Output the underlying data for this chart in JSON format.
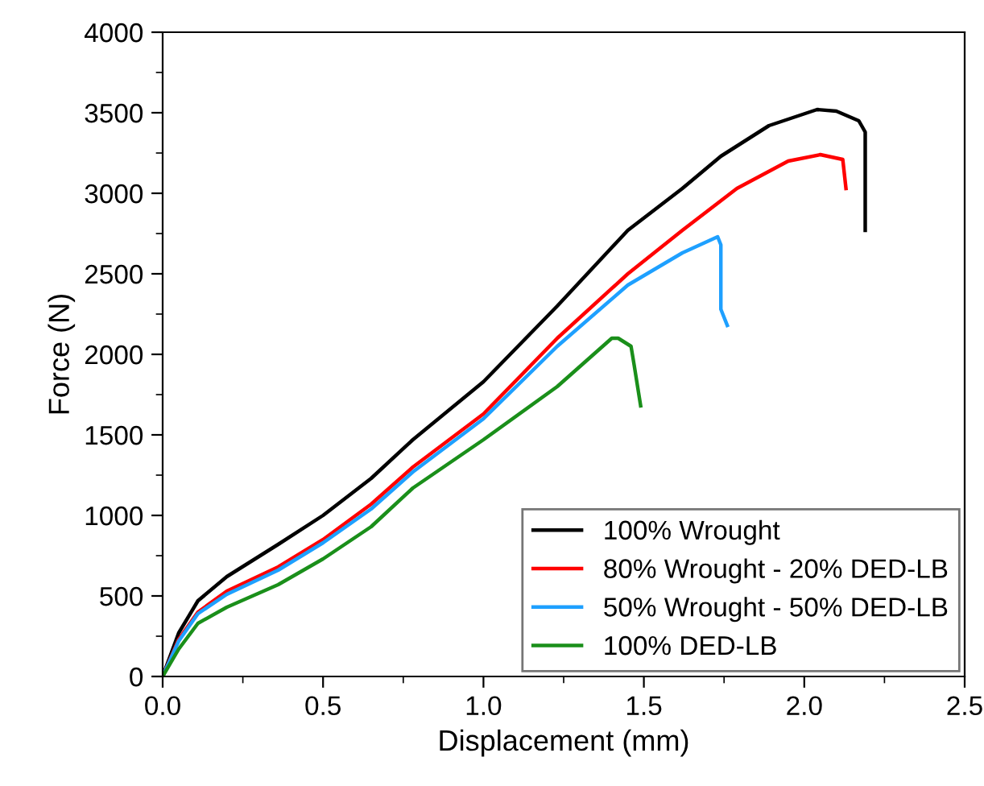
{
  "chart_data": {
    "type": "line",
    "xlabel": "Displacement (mm)",
    "ylabel": "Force (N)",
    "xlim": [
      0,
      2.5
    ],
    "ylim": [
      0,
      4000
    ],
    "xticks": [
      {
        "value": 0,
        "label": "0.0"
      },
      {
        "value": 0.25,
        "label": null
      },
      {
        "value": 0.5,
        "label": "0.5"
      },
      {
        "value": 0.75,
        "label": null
      },
      {
        "value": 1,
        "label": "1.0"
      },
      {
        "value": 1.25,
        "label": null
      },
      {
        "value": 1.5,
        "label": "1.5"
      },
      {
        "value": 1.75,
        "label": null
      },
      {
        "value": 2,
        "label": "2.0"
      },
      {
        "value": 2.25,
        "label": null
      },
      {
        "value": 2.5,
        "label": "2.5"
      }
    ],
    "yticks": [
      0,
      {
        "value": 250,
        "label": null
      },
      500,
      {
        "value": 750,
        "label": null
      },
      1000,
      {
        "value": 1250,
        "label": null
      },
      1500,
      {
        "value": 1750,
        "label": null
      },
      2000,
      {
        "value": 2250,
        "label": null
      },
      2500,
      {
        "value": 2750,
        "label": null
      },
      3000,
      {
        "value": 3250,
        "label": null
      },
      3500,
      {
        "value": 3750,
        "label": null
      },
      4000
    ],
    "grid": false,
    "legend": "bottom right",
    "marker": "none",
    "line_style": "solid",
    "series": [
      {
        "name": "100% Wrought",
        "color": "#000000",
        "x": [
          0,
          0.05,
          0.11,
          0.2,
          0.36,
          0.5,
          0.65,
          0.78,
          1.0,
          1.23,
          1.45,
          1.62,
          1.74,
          1.89,
          2.04,
          2.1,
          2.17,
          2.19,
          2.19
        ],
        "values": [
          0,
          270,
          470,
          620,
          820,
          1000,
          1230,
          1470,
          1830,
          2300,
          2770,
          3030,
          3230,
          3420,
          3520,
          3510,
          3450,
          3380,
          2770
        ]
      },
      {
        "name": "80% Wrought - 20% DED-LB",
        "color": "#ff0000",
        "x": [
          0,
          0.05,
          0.11,
          0.2,
          0.36,
          0.5,
          0.65,
          0.78,
          1.0,
          1.23,
          1.45,
          1.62,
          1.79,
          1.95,
          2.05,
          2.12,
          2.13
        ],
        "values": [
          0,
          230,
          400,
          530,
          680,
          850,
          1070,
          1300,
          1630,
          2100,
          2500,
          2770,
          3030,
          3200,
          3240,
          3210,
          3030
        ]
      },
      {
        "name": "50% Wrought - 50% DED-LB",
        "color": "#1ea0ff",
        "x": [
          0,
          0.05,
          0.11,
          0.2,
          0.36,
          0.5,
          0.65,
          0.78,
          1.0,
          1.23,
          1.45,
          1.62,
          1.73,
          1.74,
          1.74,
          1.76
        ],
        "values": [
          0,
          220,
          390,
          510,
          660,
          830,
          1040,
          1270,
          1600,
          2050,
          2430,
          2630,
          2730,
          2680,
          2280,
          2180
        ]
      },
      {
        "name": "100% DED-LB",
        "color": "#1a8f1a",
        "x": [
          0,
          0.05,
          0.11,
          0.2,
          0.36,
          0.5,
          0.65,
          0.78,
          1.0,
          1.23,
          1.4,
          1.42,
          1.46,
          1.47,
          1.49
        ],
        "values": [
          0,
          170,
          330,
          430,
          570,
          730,
          930,
          1170,
          1470,
          1800,
          2100,
          2100,
          2050,
          1930,
          1680
        ]
      }
    ]
  }
}
